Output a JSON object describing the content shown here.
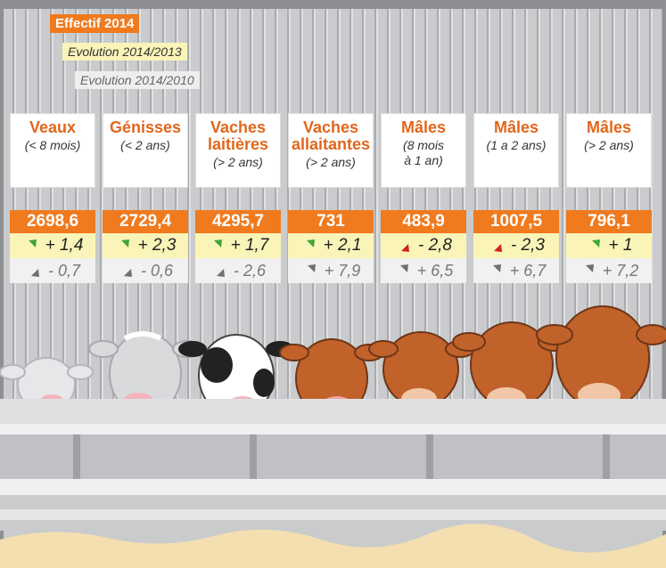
{
  "legend": {
    "effectif": "Effectif 2014",
    "evo_2013": "Evolution 2014/2013",
    "evo_2010": "Evolution 2014/2010"
  },
  "colors": {
    "orange": "#f07a1e",
    "yellow": "#fbf4b8",
    "grey_band": "#f1f1f1",
    "arrow_up": "#3fa535",
    "arrow_down": "#d42020",
    "arrow_grey": "#707070"
  },
  "chart_data": {
    "type": "table",
    "categories": [
      {
        "name": "Veaux",
        "sub": "(< 8 mois)"
      },
      {
        "name": "Génisses",
        "sub": "(< 2 ans)"
      },
      {
        "name": "Vaches\nlaitières",
        "sub": "(> 2 ans)"
      },
      {
        "name": "Vaches\nallaitantes",
        "sub": "(> 2 ans)"
      },
      {
        "name": "Mâles",
        "sub": "(8 mois\nà 1 an)"
      },
      {
        "name": "Mâles",
        "sub": "(1 a 2 ans)"
      },
      {
        "name": "Mâles",
        "sub": "(> 2 ans)"
      }
    ],
    "series": [
      {
        "name": "Effectif 2014",
        "values": [
          "2698,6",
          "2729,4",
          "4295,7",
          "731",
          "483,9",
          "1007,5",
          "796,1"
        ]
      },
      {
        "name": "Evolution 2014/2013",
        "values": [
          "+ 1,4",
          "+ 2,3",
          "+ 1,7",
          "+ 2,1",
          "- 2,8",
          "- 2,3",
          "+ 1"
        ],
        "direction": [
          "up",
          "up",
          "up",
          "up",
          "down",
          "down",
          "up"
        ]
      },
      {
        "name": "Evolution 2014/2010",
        "values": [
          "- 0,7",
          "- 0,6",
          "- 2,6",
          "+ 7,9",
          "+ 6,5",
          "+ 6,7",
          "+ 7,2"
        ],
        "direction": [
          "down",
          "down",
          "down",
          "up",
          "up",
          "up",
          "up"
        ]
      }
    ]
  }
}
